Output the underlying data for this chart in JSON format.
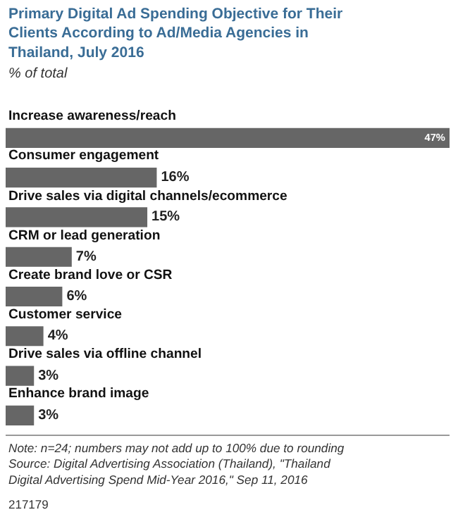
{
  "chart_data": {
    "type": "bar",
    "orientation": "horizontal",
    "title": "Primary Digital Ad Spending Objective for Their Clients According to Ad/Media Agencies in Thailand, July 2016",
    "subtitle": "% of total",
    "categories": [
      "Increase awareness/reach",
      "Consumer engagement",
      "Drive sales via digital channels/ecommerce",
      "CRM or lead generation",
      "Create brand love or CSR",
      "Customer service",
      "Drive sales via offline channel",
      "Enhance brand image"
    ],
    "values": [
      47,
      16,
      15,
      7,
      6,
      4,
      3,
      3
    ],
    "value_labels": [
      "47%",
      "16%",
      "15%",
      "7%",
      "6%",
      "4%",
      "3%",
      "3%"
    ],
    "color": "#666666",
    "annotations": [
      "Note: n=24; numbers may not add up to 100% due to rounding",
      "Source: Digital Advertising Association (Thailand), \"Thailand Digital Advertising Spend Mid-Year 2016,\" Sep 11, 2016",
      "217179"
    ]
  }
}
